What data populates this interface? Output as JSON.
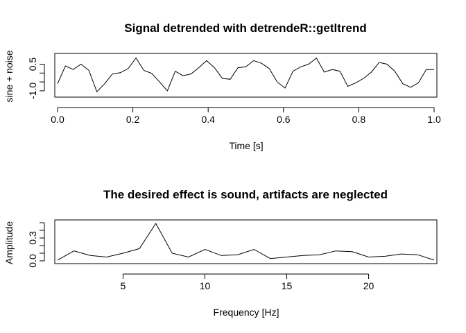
{
  "chart_data": [
    {
      "type": "line",
      "title": "Signal detrended with detrendeR::getltrend",
      "xlabel": "Time [s]",
      "ylabel": "sine + noise",
      "xlim": [
        0,
        1
      ],
      "ylim": [
        -1.2,
        0.95
      ],
      "xticks": [
        0.0,
        0.2,
        0.4,
        0.6,
        0.8,
        1.0
      ],
      "xtick_labels": [
        "0.0",
        "0.2",
        "0.4",
        "0.6",
        "0.8",
        "1.0"
      ],
      "yticks": [
        -1.0,
        -0.5,
        0.0,
        0.5
      ],
      "ytick_labels": [
        "-1.0",
        "",
        "",
        "0.5"
      ],
      "x": [
        0.0,
        0.0208,
        0.0417,
        0.0625,
        0.0833,
        0.1042,
        0.125,
        0.1458,
        0.1667,
        0.1875,
        0.2083,
        0.2292,
        0.25,
        0.2708,
        0.2917,
        0.3125,
        0.3333,
        0.3542,
        0.375,
        0.3958,
        0.4167,
        0.4375,
        0.4583,
        0.4792,
        0.5,
        0.5208,
        0.5417,
        0.5625,
        0.5833,
        0.6042,
        0.625,
        0.6458,
        0.6667,
        0.6875,
        0.7083,
        0.7292,
        0.75,
        0.7708,
        0.7917,
        0.8125,
        0.8333,
        0.8542,
        0.875,
        0.8958,
        0.9167,
        0.9375,
        0.9583,
        0.9792,
        1.0
      ],
      "y": [
        -0.6,
        0.4,
        0.2,
        0.5,
        0.15,
        -1.05,
        -0.6,
        -0.05,
        0.02,
        0.25,
        0.85,
        0.15,
        -0.02,
        -0.5,
        -1.0,
        0.1,
        -0.15,
        -0.05,
        0.3,
        0.7,
        0.3,
        -0.3,
        -0.35,
        0.3,
        0.35,
        0.7,
        0.55,
        0.25,
        -0.5,
        -0.85,
        0.1,
        0.35,
        0.5,
        0.85,
        0.05,
        0.2,
        0.1,
        -0.75,
        -0.55,
        -0.3,
        0.05,
        0.6,
        0.5,
        0.1,
        -0.6,
        -0.8,
        -0.55,
        0.2,
        0.2
      ]
    },
    {
      "type": "line",
      "title": "The desired effect is sound, artifacts are neglected",
      "xlabel": "Frequency [Hz]",
      "ylabel": "Amplitude",
      "xlim": [
        1,
        24
      ],
      "ylim": [
        0,
        0.5
      ],
      "xticks": [
        5,
        10,
        15,
        20
      ],
      "xtick_labels": [
        "5",
        "10",
        "15",
        "20"
      ],
      "yticks": [
        0.0,
        0.1,
        0.2,
        0.3,
        0.4,
        0.5
      ],
      "ytick_labels": [
        "0.0",
        "",
        "",
        "0.3",
        "",
        ""
      ],
      "x": [
        1,
        2,
        3,
        4,
        5,
        6,
        7,
        8,
        9,
        10,
        11,
        12,
        13,
        14,
        15,
        16,
        17,
        18,
        19,
        20,
        21,
        22,
        23,
        24
      ],
      "y": [
        0.01,
        0.13,
        0.07,
        0.05,
        0.1,
        0.16,
        0.49,
        0.1,
        0.05,
        0.15,
        0.07,
        0.08,
        0.15,
        0.03,
        0.05,
        0.07,
        0.08,
        0.13,
        0.12,
        0.05,
        0.06,
        0.09,
        0.08,
        0.01
      ]
    }
  ]
}
